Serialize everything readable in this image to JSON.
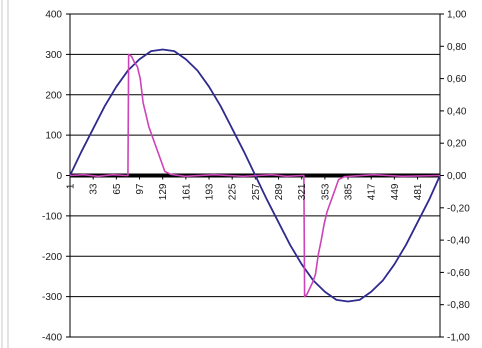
{
  "chart_data": {
    "type": "line",
    "title": "",
    "xlabel": "",
    "ylabel": "",
    "y2label": "",
    "xlim": [
      1,
      512
    ],
    "ylim": [
      -400,
      400
    ],
    "y2lim": [
      -1.0,
      1.0
    ],
    "y_ticks": [
      "400",
      "300",
      "200",
      "100",
      "0",
      "-100",
      "-200",
      "-300",
      "-400"
    ],
    "y2_ticks": [
      "1,00",
      "0,80",
      "0,60",
      "0,40",
      "0,20",
      "0,00",
      "-0,20",
      "-0,40",
      "-0,60",
      "-0,80",
      "-1,00"
    ],
    "x_ticks": [
      "1",
      "33",
      "65",
      "97",
      "129",
      "161",
      "193",
      "225",
      "257",
      "289",
      "321",
      "353",
      "385",
      "417",
      "449",
      "481"
    ],
    "grid": "horizontal",
    "legend": "none",
    "colors": {
      "sine": "#2e2a8f",
      "signal": "#cc44b8",
      "axis": "#000000",
      "grid": "#000000",
      "border": "#c9c9c9"
    },
    "series": [
      {
        "axis": "right",
        "style": "sine",
        "x": [
          1,
          17,
          33,
          49,
          65,
          81,
          97,
          113,
          129,
          145,
          161,
          177,
          193,
          209,
          225,
          241,
          257,
          273,
          289,
          305,
          321,
          337,
          353,
          369,
          385,
          401,
          417,
          433,
          449,
          465,
          481,
          497,
          512
        ],
        "values": [
          0.0,
          0.15,
          0.29,
          0.43,
          0.55,
          0.65,
          0.72,
          0.77,
          0.78,
          0.77,
          0.72,
          0.65,
          0.55,
          0.43,
          0.29,
          0.15,
          0.0,
          -0.15,
          -0.29,
          -0.43,
          -0.55,
          -0.65,
          -0.72,
          -0.77,
          -0.78,
          -0.77,
          -0.72,
          -0.65,
          -0.55,
          -0.43,
          -0.29,
          -0.15,
          0.0
        ]
      },
      {
        "axis": "left",
        "style": "signal",
        "x": [
          1,
          20,
          40,
          60,
          78,
          81,
          82,
          86,
          90,
          94,
          98,
          102,
          106,
          110,
          116,
          122,
          128,
          132,
          140,
          160,
          200,
          240,
          280,
          300,
          322,
          324,
          325,
          328,
          332,
          336,
          340,
          344,
          348,
          352,
          356,
          362,
          368,
          372,
          380,
          420,
          460,
          512
        ],
        "values": [
          0,
          2,
          -2,
          2,
          0,
          0,
          300,
          295,
          280,
          270,
          240,
          180,
          150,
          120,
          90,
          60,
          30,
          10,
          3,
          -2,
          2,
          -2,
          2,
          -2,
          0,
          0,
          -300,
          -295,
          -280,
          -265,
          -245,
          -195,
          -160,
          -120,
          -90,
          -60,
          -30,
          -10,
          -3,
          2,
          -2,
          0
        ]
      }
    ]
  }
}
